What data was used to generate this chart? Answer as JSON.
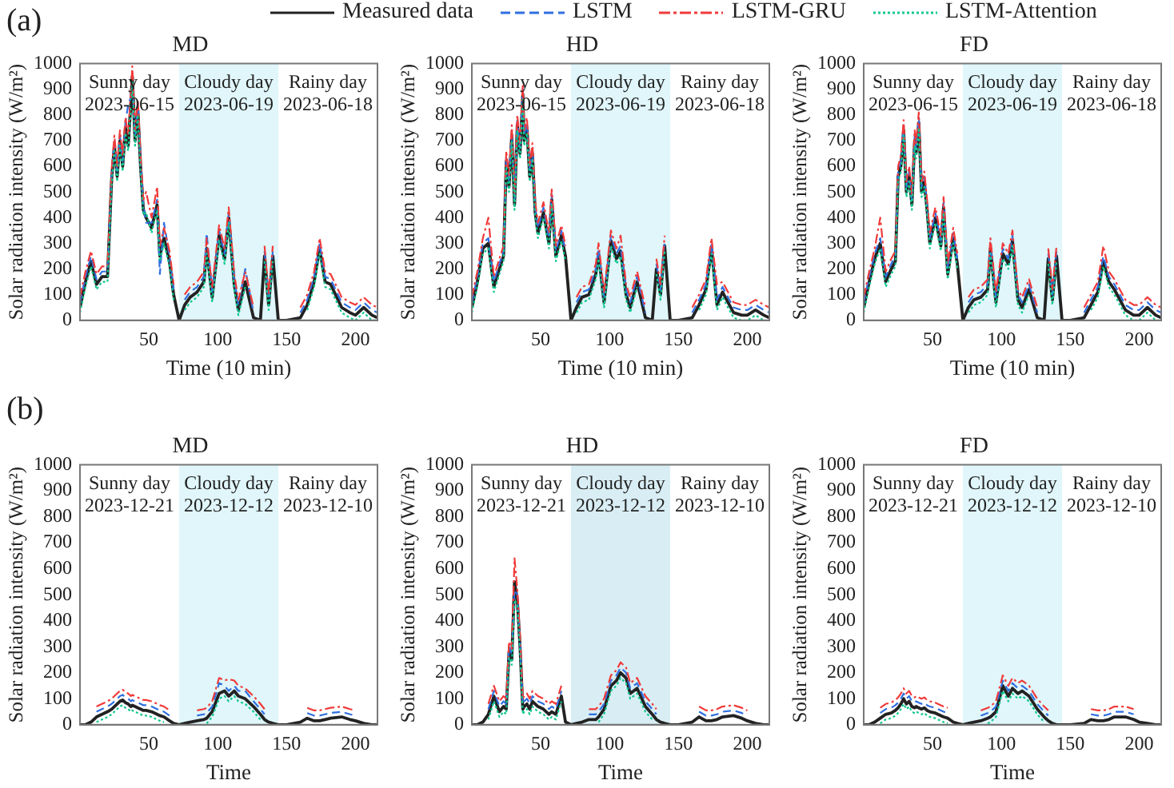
{
  "chart_data": [
    {
      "type": "line",
      "title": "MD",
      "xlabel": "Time (10 min)",
      "ylabel": "Solar radiation intensity (W/m²)",
      "legend": "top",
      "xlim": [
        0,
        216
      ],
      "xticks": [
        50,
        100,
        150,
        200
      ],
      "ylim": [
        0,
        1000
      ],
      "yticks": [
        0,
        100,
        200,
        300,
        400,
        500,
        600,
        700,
        800,
        900,
        1000
      ],
      "annotations": [
        "(a)",
        "Sunny day\n2023-06-15",
        "Cloudy day\n2023-06-19",
        "Rainy day\n2023-06-18"
      ],
      "bands": [
        {
          "axis": "x",
          "from": 72,
          "to": 144,
          "color": "#e0f6fa"
        }
      ],
      "x": [
        0,
        4,
        8,
        12,
        16,
        20,
        23,
        25,
        27,
        29,
        31,
        33,
        35,
        37,
        38,
        40,
        42,
        44,
        46,
        48,
        52,
        56,
        58,
        61,
        65,
        68,
        72,
        76,
        80,
        85,
        90,
        92,
        96,
        101,
        105,
        108,
        112,
        115,
        120,
        126,
        131,
        134,
        137,
        140,
        144,
        150,
        160,
        165,
        170,
        174,
        178,
        182,
        190,
        196,
        200,
        206,
        212,
        216
      ],
      "series": [
        {
          "name": "Measured data",
          "color": "#222222",
          "line_style": "solid",
          "values": [
            50,
            150,
            230,
            140,
            170,
            170,
            550,
            680,
            560,
            700,
            600,
            750,
            680,
            850,
            950,
            700,
            820,
            600,
            430,
            400,
            360,
            450,
            250,
            320,
            230,
            100,
            0,
            60,
            90,
            110,
            150,
            280,
            90,
            330,
            240,
            400,
            140,
            40,
            150,
            10,
            0,
            250,
            60,
            250,
            0,
            0,
            10,
            60,
            150,
            280,
            150,
            140,
            50,
            30,
            20,
            50,
            20,
            10
          ]
        },
        {
          "name": "LSTM",
          "color": "#2f6fe0",
          "line_style": "dashed",
          "values": [
            70,
            170,
            250,
            160,
            190,
            190,
            570,
            700,
            580,
            720,
            620,
            770,
            840,
            870,
            910,
            720,
            850,
            620,
            450,
            380,
            380,
            470,
            180,
            380,
            250,
            120,
            null,
            80,
            110,
            130,
            170,
            340,
            110,
            350,
            260,
            420,
            160,
            60,
            200,
            30,
            null,
            270,
            80,
            270,
            null,
            null,
            30,
            80,
            170,
            300,
            170,
            160,
            70,
            50,
            40,
            70,
            40,
            30
          ]
        },
        {
          "name": "LSTM-GRU",
          "color": "#f03a3a",
          "line_style": "dashdot",
          "values": [
            90,
            190,
            270,
            180,
            210,
            210,
            590,
            720,
            600,
            740,
            640,
            790,
            720,
            890,
            990,
            740,
            860,
            640,
            470,
            500,
            400,
            520,
            290,
            360,
            270,
            140,
            null,
            100,
            130,
            150,
            190,
            320,
            130,
            370,
            280,
            440,
            180,
            80,
            190,
            50,
            null,
            290,
            100,
            290,
            null,
            null,
            50,
            100,
            190,
            320,
            190,
            180,
            90,
            70,
            60,
            90,
            60,
            50
          ]
        },
        {
          "name": "LSTM-Attention",
          "color": "#10c890",
          "line_style": "dotted",
          "values": [
            30,
            130,
            210,
            120,
            150,
            150,
            530,
            660,
            540,
            680,
            580,
            730,
            660,
            830,
            930,
            680,
            800,
            580,
            410,
            420,
            340,
            430,
            230,
            300,
            210,
            80,
            null,
            40,
            70,
            90,
            130,
            260,
            70,
            310,
            220,
            380,
            120,
            20,
            130,
            null,
            null,
            230,
            40,
            230,
            null,
            null,
            null,
            40,
            130,
            260,
            130,
            120,
            30,
            10,
            0,
            30,
            0,
            0
          ]
        }
      ]
    },
    {
      "type": "line",
      "title": "HD",
      "xlabel": "Time (10 min)",
      "ylabel": "Solar radiation intensity (W/m²)",
      "xlim": [
        0,
        216
      ],
      "xticks": [
        50,
        100,
        150,
        200
      ],
      "ylim": [
        0,
        1000
      ],
      "yticks": [
        0,
        100,
        200,
        300,
        400,
        500,
        600,
        700,
        800,
        900,
        1000
      ],
      "annotations": [
        "Sunny day\n2023-06-15",
        "Cloudy day\n2023-06-19",
        "Rainy day\n2023-06-18"
      ],
      "bands": [
        {
          "axis": "x",
          "from": 72,
          "to": 144,
          "color": "#e0f6fa"
        }
      ],
      "x": [
        0,
        4,
        8,
        12,
        16,
        20,
        23,
        25,
        27,
        29,
        31,
        33,
        35,
        37,
        38,
        40,
        42,
        44,
        46,
        48,
        52,
        56,
        58,
        61,
        65,
        68,
        72,
        76,
        80,
        85,
        90,
        92,
        96,
        101,
        105,
        108,
        112,
        115,
        120,
        126,
        131,
        134,
        137,
        140,
        144,
        150,
        160,
        165,
        170,
        174,
        178,
        182,
        190,
        196,
        200,
        206,
        212,
        216
      ],
      "series": [
        {
          "color": "#222222",
          "line_style": "solid",
          "values": [
            50,
            150,
            280,
            300,
            130,
            200,
            250,
            620,
            520,
            720,
            450,
            760,
            650,
            880,
            700,
            750,
            560,
            650,
            420,
            340,
            420,
            300,
            470,
            250,
            330,
            250,
            0,
            50,
            90,
            100,
            180,
            260,
            70,
            310,
            240,
            270,
            100,
            50,
            150,
            10,
            0,
            200,
            100,
            290,
            0,
            0,
            10,
            60,
            120,
            280,
            60,
            110,
            30,
            20,
            20,
            40,
            20,
            10
          ]
        },
        {
          "color": "#2f6fe0",
          "line_style": "dashed",
          "values": [
            70,
            170,
            300,
            320,
            150,
            220,
            270,
            640,
            540,
            740,
            470,
            780,
            670,
            900,
            720,
            770,
            580,
            670,
            440,
            360,
            440,
            320,
            490,
            270,
            350,
            270,
            null,
            70,
            110,
            120,
            200,
            280,
            90,
            330,
            260,
            290,
            120,
            70,
            170,
            30,
            null,
            220,
            120,
            310,
            null,
            null,
            30,
            80,
            140,
            300,
            80,
            130,
            50,
            40,
            40,
            60,
            40,
            30
          ]
        },
        {
          "color": "#f03a3a",
          "line_style": "dashdot",
          "values": [
            90,
            190,
            320,
            400,
            170,
            240,
            290,
            660,
            560,
            760,
            490,
            800,
            690,
            920,
            740,
            790,
            600,
            690,
            460,
            380,
            460,
            340,
            510,
            290,
            370,
            290,
            null,
            90,
            130,
            140,
            220,
            300,
            110,
            350,
            280,
            330,
            140,
            90,
            190,
            50,
            null,
            240,
            140,
            330,
            null,
            null,
            50,
            100,
            160,
            320,
            140,
            150,
            70,
            60,
            60,
            80,
            60,
            50
          ]
        },
        {
          "color": "#10c890",
          "line_style": "dotted",
          "values": [
            30,
            130,
            260,
            280,
            110,
            180,
            230,
            600,
            500,
            700,
            430,
            740,
            630,
            860,
            680,
            730,
            540,
            630,
            400,
            320,
            400,
            280,
            450,
            230,
            310,
            230,
            null,
            30,
            70,
            80,
            160,
            240,
            50,
            290,
            220,
            250,
            80,
            30,
            130,
            null,
            null,
            180,
            80,
            270,
            null,
            null,
            null,
            40,
            100,
            260,
            40,
            90,
            10,
            0,
            0,
            20,
            0,
            null
          ]
        }
      ]
    },
    {
      "type": "line",
      "title": "FD",
      "xlabel": "Time (10 min)",
      "ylabel": "Solar radiation intensity (W/m²)",
      "xlim": [
        0,
        216
      ],
      "xticks": [
        50,
        100,
        150,
        200
      ],
      "ylim": [
        0,
        1000
      ],
      "yticks": [
        0,
        100,
        200,
        300,
        400,
        500,
        600,
        700,
        800,
        900,
        1000
      ],
      "annotations": [
        "Sunny day\n2023-06-15",
        "Cloudy day\n2023-06-19",
        "Rainy day\n2023-06-18"
      ],
      "bands": [
        {
          "axis": "x",
          "from": 72,
          "to": 144,
          "color": "#e0f6fa"
        }
      ],
      "x": [
        0,
        4,
        8,
        12,
        16,
        20,
        23,
        25,
        27,
        29,
        31,
        33,
        35,
        37,
        38,
        40,
        42,
        44,
        46,
        48,
        52,
        56,
        58,
        61,
        65,
        68,
        72,
        76,
        80,
        85,
        90,
        92,
        96,
        101,
        105,
        108,
        112,
        115,
        120,
        126,
        131,
        134,
        137,
        140,
        144,
        150,
        160,
        165,
        170,
        174,
        178,
        182,
        190,
        196,
        200,
        206,
        212,
        216
      ],
      "series": [
        {
          "color": "#222222",
          "line_style": "solid",
          "values": [
            50,
            150,
            240,
            300,
            150,
            200,
            230,
            560,
            600,
            740,
            500,
            560,
            450,
            700,
            650,
            770,
            500,
            540,
            430,
            300,
            400,
            290,
            440,
            180,
            320,
            220,
            0,
            50,
            80,
            90,
            120,
            280,
            70,
            260,
            220,
            310,
            80,
            50,
            120,
            10,
            0,
            240,
            80,
            250,
            0,
            0,
            10,
            60,
            110,
            230,
            150,
            120,
            40,
            20,
            20,
            50,
            20,
            10
          ]
        },
        {
          "color": "#2f6fe0",
          "line_style": "dashed",
          "values": [
            70,
            170,
            260,
            320,
            170,
            220,
            250,
            580,
            620,
            760,
            520,
            580,
            470,
            720,
            670,
            790,
            520,
            560,
            450,
            320,
            420,
            310,
            460,
            200,
            340,
            240,
            null,
            70,
            100,
            110,
            140,
            300,
            90,
            280,
            240,
            330,
            100,
            70,
            140,
            30,
            null,
            260,
            100,
            270,
            null,
            null,
            30,
            80,
            130,
            250,
            170,
            140,
            60,
            40,
            40,
            70,
            40,
            30
          ]
        },
        {
          "color": "#f03a3a",
          "line_style": "dashdot",
          "values": [
            90,
            190,
            280,
            400,
            190,
            240,
            270,
            600,
            640,
            780,
            540,
            600,
            490,
            740,
            690,
            810,
            540,
            580,
            470,
            340,
            440,
            330,
            480,
            220,
            360,
            260,
            null,
            90,
            120,
            130,
            160,
            320,
            110,
            300,
            260,
            350,
            120,
            90,
            160,
            50,
            null,
            280,
            120,
            290,
            null,
            null,
            50,
            100,
            150,
            290,
            190,
            160,
            80,
            60,
            60,
            90,
            60,
            50
          ]
        },
        {
          "color": "#10c890",
          "line_style": "dotted",
          "values": [
            30,
            130,
            220,
            280,
            130,
            180,
            210,
            540,
            580,
            720,
            480,
            540,
            430,
            680,
            630,
            750,
            480,
            520,
            410,
            280,
            380,
            270,
            420,
            160,
            300,
            200,
            null,
            30,
            60,
            70,
            100,
            260,
            50,
            240,
            200,
            290,
            60,
            30,
            100,
            null,
            null,
            220,
            60,
            230,
            null,
            null,
            null,
            40,
            90,
            210,
            130,
            100,
            20,
            0,
            0,
            30,
            0,
            null
          ]
        }
      ]
    },
    {
      "type": "line",
      "title": "MD",
      "xlabel": "Time",
      "ylabel": "Solar radiation intensity (W/m²)",
      "xlim": [
        0,
        216
      ],
      "xticks": [
        50,
        100,
        150,
        200
      ],
      "ylim": [
        0,
        1000
      ],
      "yticks": [
        0,
        100,
        200,
        300,
        400,
        500,
        600,
        700,
        800,
        900,
        1000
      ],
      "annotations": [
        "(b)",
        "Sunny day\n2023-12-21",
        "Cloudy day\n2023-12-12",
        "Rainy day\n2023-12-10"
      ],
      "bands": [
        {
          "axis": "x",
          "from": 72,
          "to": 144,
          "color": "#e0f6fa"
        }
      ],
      "x": [
        0,
        4,
        8,
        12,
        16,
        20,
        23,
        25,
        27,
        29,
        31,
        33,
        35,
        37,
        38,
        40,
        42,
        44,
        46,
        48,
        52,
        56,
        58,
        61,
        65,
        68,
        72,
        76,
        80,
        85,
        90,
        92,
        96,
        101,
        105,
        108,
        112,
        115,
        120,
        126,
        131,
        134,
        137,
        140,
        144,
        150,
        160,
        165,
        170,
        174,
        178,
        182,
        190,
        196,
        200,
        206,
        212,
        216
      ],
      "series": [
        {
          "color": "#222222",
          "line_style": "solid",
          "values": [
            0,
            0,
            10,
            30,
            40,
            50,
            60,
            70,
            80,
            90,
            95,
            85,
            80,
            70,
            75,
            70,
            65,
            60,
            55,
            55,
            50,
            40,
            35,
            30,
            15,
            5,
            0,
            5,
            10,
            15,
            20,
            25,
            50,
            120,
            130,
            110,
            130,
            110,
            100,
            70,
            40,
            20,
            10,
            5,
            0,
            0,
            10,
            25,
            15,
            15,
            20,
            25,
            30,
            20,
            15,
            5,
            0,
            0
          ]
        },
        {
          "color": "#2f6fe0",
          "line_style": "dashed",
          "values": [
            null,
            null,
            null,
            50,
            60,
            70,
            80,
            90,
            100,
            110,
            115,
            105,
            100,
            90,
            95,
            90,
            85,
            80,
            75,
            75,
            70,
            60,
            55,
            50,
            35,
            null,
            null,
            null,
            null,
            35,
            40,
            45,
            70,
            160,
            150,
            130,
            150,
            130,
            130,
            90,
            60,
            40,
            null,
            null,
            null,
            null,
            null,
            45,
            35,
            35,
            40,
            45,
            50,
            40,
            35,
            null,
            null,
            null
          ]
        },
        {
          "color": "#f03a3a",
          "line_style": "dashdot",
          "values": [
            null,
            null,
            null,
            70,
            80,
            90,
            100,
            110,
            120,
            130,
            135,
            125,
            120,
            110,
            115,
            110,
            105,
            100,
            95,
            95,
            90,
            80,
            75,
            70,
            55,
            null,
            null,
            null,
            null,
            55,
            60,
            65,
            90,
            180,
            170,
            175,
            170,
            150,
            140,
            110,
            80,
            60,
            null,
            null,
            null,
            null,
            null,
            65,
            55,
            55,
            60,
            65,
            70,
            60,
            55,
            null,
            null,
            null
          ]
        },
        {
          "color": "#10c890",
          "line_style": "dotted",
          "values": [
            null,
            null,
            null,
            10,
            20,
            30,
            40,
            50,
            60,
            70,
            75,
            65,
            60,
            50,
            55,
            50,
            45,
            40,
            35,
            35,
            30,
            20,
            15,
            10,
            null,
            null,
            null,
            null,
            null,
            null,
            null,
            5,
            30,
            100,
            110,
            90,
            110,
            90,
            80,
            50,
            20,
            null,
            null,
            null,
            null,
            null,
            null,
            null,
            null,
            null,
            null,
            null,
            null,
            null,
            null,
            null,
            null,
            null
          ]
        }
      ]
    },
    {
      "type": "line",
      "title": "HD",
      "xlabel": "Time",
      "ylabel": "Solar radiation intensity (W/m²)",
      "xlim": [
        0,
        216
      ],
      "xticks": [
        50,
        100,
        150,
        200
      ],
      "ylim": [
        0,
        1000
      ],
      "yticks": [
        0,
        100,
        200,
        300,
        400,
        500,
        600,
        700,
        800,
        900,
        1000
      ],
      "annotations": [
        "Sunny day\n2023-12-21",
        "Cloudy day\n2023-12-12",
        "Rainy day\n2023-12-10"
      ],
      "bands": [
        {
          "axis": "x",
          "from": 72,
          "to": 144,
          "color": "#d9eef4"
        }
      ],
      "x": [
        0,
        4,
        8,
        12,
        16,
        20,
        23,
        25,
        27,
        29,
        31,
        33,
        35,
        37,
        38,
        40,
        42,
        44,
        46,
        48,
        52,
        56,
        58,
        61,
        65,
        68,
        72,
        76,
        80,
        85,
        90,
        92,
        96,
        101,
        105,
        108,
        112,
        115,
        120,
        126,
        131,
        134,
        137,
        140,
        144,
        150,
        160,
        165,
        170,
        174,
        178,
        182,
        190,
        196,
        200,
        206,
        212,
        216
      ],
      "series": [
        {
          "color": "#222222",
          "line_style": "solid",
          "values": [
            0,
            0,
            10,
            40,
            110,
            50,
            70,
            60,
            280,
            250,
            550,
            480,
            300,
            60,
            70,
            80,
            60,
            90,
            80,
            70,
            60,
            40,
            50,
            40,
            110,
            10,
            0,
            5,
            10,
            20,
            20,
            30,
            60,
            150,
            170,
            200,
            180,
            120,
            140,
            70,
            40,
            20,
            10,
            5,
            0,
            0,
            10,
            30,
            15,
            15,
            20,
            30,
            35,
            25,
            15,
            5,
            0,
            0
          ]
        },
        {
          "color": "#2f6fe0",
          "line_style": "dashed",
          "values": [
            null,
            null,
            null,
            60,
            130,
            70,
            90,
            80,
            300,
            270,
            520,
            500,
            320,
            80,
            90,
            100,
            80,
            110,
            100,
            90,
            80,
            60,
            70,
            60,
            130,
            null,
            null,
            null,
            null,
            40,
            40,
            50,
            80,
            170,
            190,
            220,
            200,
            140,
            160,
            90,
            60,
            40,
            null,
            null,
            null,
            null,
            null,
            50,
            35,
            35,
            40,
            50,
            55,
            45,
            35,
            null,
            null,
            null
          ]
        },
        {
          "color": "#f03a3a",
          "line_style": "dashdot",
          "values": [
            null,
            null,
            null,
            80,
            150,
            90,
            110,
            100,
            320,
            290,
            640,
            520,
            340,
            100,
            110,
            120,
            100,
            130,
            120,
            110,
            100,
            80,
            90,
            80,
            150,
            null,
            null,
            null,
            null,
            60,
            60,
            70,
            100,
            190,
            210,
            240,
            220,
            160,
            180,
            110,
            80,
            60,
            null,
            null,
            null,
            null,
            null,
            70,
            55,
            55,
            60,
            70,
            75,
            65,
            55,
            null,
            null,
            null
          ]
        },
        {
          "color": "#10c890",
          "line_style": "dotted",
          "values": [
            null,
            null,
            null,
            20,
            90,
            30,
            50,
            40,
            260,
            230,
            480,
            460,
            280,
            40,
            50,
            60,
            40,
            70,
            60,
            50,
            40,
            20,
            30,
            20,
            90,
            null,
            null,
            null,
            null,
            null,
            null,
            10,
            40,
            130,
            150,
            180,
            160,
            100,
            120,
            50,
            20,
            null,
            null,
            null,
            null,
            null,
            null,
            null,
            null,
            null,
            null,
            null,
            null,
            null,
            null,
            null,
            null,
            null
          ]
        }
      ]
    },
    {
      "type": "line",
      "title": "FD",
      "xlabel": "Time",
      "ylabel": "Solar radiation intensity (W/m²)",
      "xlim": [
        0,
        216
      ],
      "xticks": [
        50,
        100,
        150,
        200
      ],
      "ylim": [
        0,
        1000
      ],
      "yticks": [
        0,
        100,
        200,
        300,
        400,
        500,
        600,
        700,
        800,
        900,
        1000
      ],
      "annotations": [
        "Sunny day\n2023-12-21",
        "Cloudy day\n2023-12-12",
        "Rainy day\n2023-12-10"
      ],
      "bands": [
        {
          "axis": "x",
          "from": 72,
          "to": 144,
          "color": "#e0f6fa"
        }
      ],
      "x": [
        0,
        4,
        8,
        12,
        16,
        20,
        23,
        25,
        27,
        29,
        31,
        33,
        35,
        37,
        38,
        40,
        42,
        44,
        46,
        48,
        52,
        56,
        58,
        61,
        65,
        68,
        72,
        76,
        80,
        85,
        90,
        92,
        96,
        101,
        105,
        108,
        112,
        115,
        120,
        126,
        131,
        134,
        137,
        140,
        144,
        150,
        160,
        165,
        170,
        174,
        178,
        182,
        190,
        196,
        200,
        206,
        212,
        216
      ],
      "series": [
        {
          "color": "#222222",
          "line_style": "solid",
          "values": [
            0,
            0,
            10,
            25,
            40,
            45,
            55,
            65,
            80,
            100,
            80,
            90,
            70,
            65,
            70,
            65,
            60,
            65,
            55,
            50,
            45,
            35,
            30,
            25,
            10,
            5,
            0,
            5,
            10,
            15,
            25,
            30,
            50,
            150,
            110,
            140,
            120,
            130,
            110,
            60,
            30,
            15,
            5,
            0,
            0,
            0,
            5,
            20,
            15,
            15,
            20,
            30,
            30,
            20,
            10,
            5,
            0,
            0
          ]
        },
        {
          "color": "#2f6fe0",
          "line_style": "dashed",
          "values": [
            null,
            null,
            null,
            45,
            60,
            65,
            75,
            85,
            100,
            120,
            100,
            110,
            90,
            85,
            90,
            85,
            80,
            85,
            75,
            70,
            65,
            55,
            50,
            45,
            null,
            null,
            null,
            null,
            null,
            35,
            45,
            50,
            70,
            170,
            130,
            160,
            140,
            150,
            130,
            80,
            50,
            35,
            null,
            null,
            null,
            null,
            null,
            40,
            35,
            35,
            40,
            50,
            50,
            40,
            null,
            null,
            null,
            null
          ]
        },
        {
          "color": "#f03a3a",
          "line_style": "dashdot",
          "values": [
            null,
            null,
            null,
            65,
            80,
            85,
            95,
            105,
            120,
            140,
            120,
            130,
            110,
            105,
            110,
            105,
            100,
            105,
            95,
            90,
            85,
            75,
            70,
            65,
            null,
            null,
            null,
            null,
            null,
            55,
            65,
            70,
            90,
            190,
            150,
            180,
            160,
            170,
            150,
            100,
            70,
            55,
            null,
            null,
            null,
            null,
            null,
            60,
            55,
            55,
            60,
            70,
            70,
            60,
            null,
            null,
            null,
            null
          ]
        },
        {
          "color": "#10c890",
          "line_style": "dotted",
          "values": [
            null,
            null,
            null,
            5,
            20,
            25,
            35,
            45,
            60,
            80,
            60,
            70,
            50,
            45,
            50,
            45,
            40,
            45,
            35,
            30,
            25,
            15,
            10,
            5,
            null,
            null,
            null,
            null,
            null,
            null,
            5,
            10,
            30,
            130,
            90,
            120,
            100,
            110,
            90,
            40,
            10,
            null,
            null,
            null,
            null,
            null,
            null,
            null,
            null,
            null,
            null,
            null,
            null,
            null,
            null,
            null,
            null,
            null
          ]
        }
      ]
    }
  ]
}
